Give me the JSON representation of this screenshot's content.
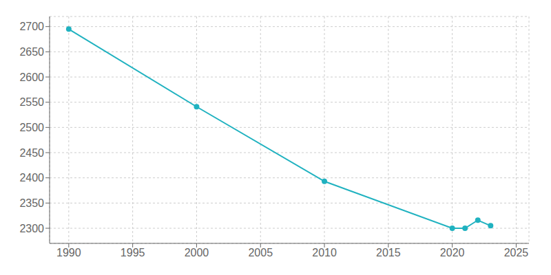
{
  "chart_data": {
    "type": "line",
    "x": [
      1990,
      2000,
      2010,
      2020,
      2021,
      2022,
      2023
    ],
    "values": [
      2695,
      2541,
      2393,
      2300,
      2300,
      2316,
      2305
    ],
    "color": "#20b2c0",
    "marker": "circle",
    "xlim": [
      1988.5,
      2026
    ],
    "ylim": [
      2270,
      2720
    ],
    "xticks": [
      1990,
      1995,
      2000,
      2005,
      2010,
      2015,
      2020,
      2025
    ],
    "yticks": [
      2300,
      2350,
      2400,
      2450,
      2500,
      2550,
      2600,
      2650,
      2700
    ],
    "grid": true
  }
}
